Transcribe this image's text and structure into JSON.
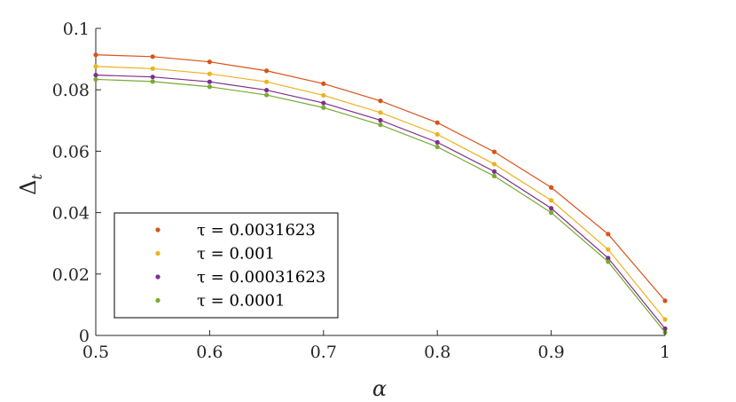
{
  "chart_data": {
    "type": "line",
    "xlabel": "α",
    "ylabel": "Δ",
    "ylabel_sub": "t",
    "xlim": [
      0.5,
      1
    ],
    "ylim": [
      0,
      0.1
    ],
    "x": [
      0.5,
      0.55,
      0.6,
      0.65,
      0.7,
      0.75,
      0.8,
      0.85,
      0.9,
      0.95,
      1.0
    ],
    "xticks": [
      "0.5",
      "0.6",
      "0.7",
      "0.8",
      "0.9",
      "1"
    ],
    "yticks": [
      "0",
      "0.02",
      "0.04",
      "0.06",
      "0.08",
      "0.1"
    ],
    "grid": false,
    "legend_position": "bottom-left",
    "series": [
      {
        "name": "τ = 0.0031623",
        "color": "#D95319",
        "values": [
          0.0914,
          0.0908,
          0.0891,
          0.0862,
          0.082,
          0.0764,
          0.0693,
          0.0598,
          0.0482,
          0.033,
          0.0113
        ]
      },
      {
        "name": "τ = 0.001",
        "color": "#EDB120",
        "values": [
          0.0876,
          0.0869,
          0.0852,
          0.0826,
          0.0782,
          0.0726,
          0.0655,
          0.0558,
          0.044,
          0.028,
          0.0052
        ]
      },
      {
        "name": "τ = 0.00031623",
        "color": "#7E2F8E",
        "values": [
          0.0848,
          0.0842,
          0.0826,
          0.0799,
          0.0757,
          0.0701,
          0.0629,
          0.0534,
          0.0414,
          0.0252,
          0.0022
        ]
      },
      {
        "name": "τ = 0.0001",
        "color": "#77AC30",
        "values": [
          0.0834,
          0.0827,
          0.081,
          0.0783,
          0.0742,
          0.0686,
          0.0614,
          0.0519,
          0.04,
          0.024,
          0.001
        ]
      }
    ]
  }
}
